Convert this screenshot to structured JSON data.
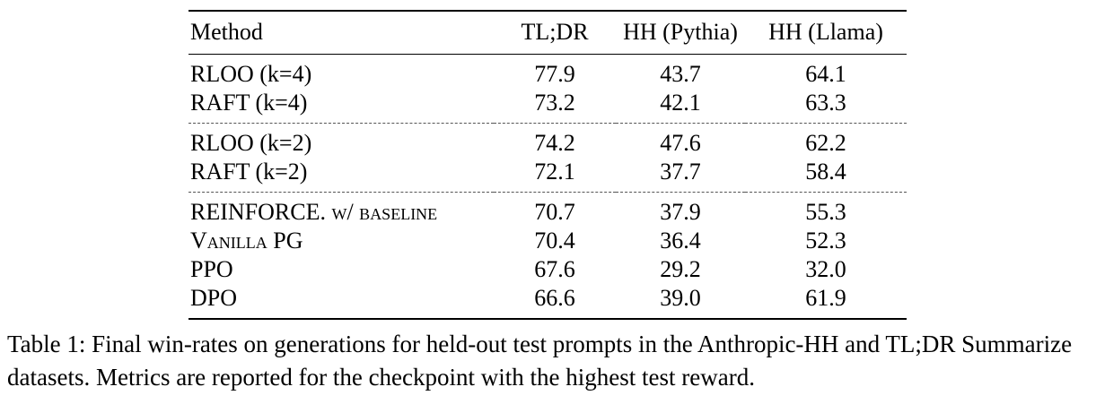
{
  "table": {
    "columns": [
      "Method",
      "TL;DR",
      "HH (Pythia)",
      "HH (Llama)"
    ],
    "groups": [
      {
        "rows": [
          {
            "method": [
              {
                "t": "RLOO (k=4)",
                "sc": false
              }
            ],
            "values": [
              {
                "v": "77.9",
                "b": true
              },
              {
                "v": "43.7",
                "b": true
              },
              {
                "v": "64.1",
                "b": true
              }
            ]
          },
          {
            "method": [
              {
                "t": "RAFT (k=4)",
                "sc": false
              }
            ],
            "values": [
              {
                "v": "73.2",
                "b": false
              },
              {
                "v": "42.1",
                "b": false
              },
              {
                "v": "63.3",
                "b": false
              }
            ]
          }
        ]
      },
      {
        "rows": [
          {
            "method": [
              {
                "t": "RLOO (k=2)",
                "sc": false
              }
            ],
            "values": [
              {
                "v": "74.2",
                "b": true
              },
              {
                "v": "47.6",
                "b": true
              },
              {
                "v": "62.2",
                "b": true
              }
            ]
          },
          {
            "method": [
              {
                "t": "RAFT (k=2)",
                "sc": false
              }
            ],
            "values": [
              {
                "v": "72.1",
                "b": false
              },
              {
                "v": "37.7",
                "b": false
              },
              {
                "v": "58.4",
                "b": false
              }
            ]
          }
        ]
      },
      {
        "rows": [
          {
            "method": [
              {
                "t": "REINFORCE. ",
                "sc": false
              },
              {
                "t": "w/ baseline",
                "sc": true
              }
            ],
            "values": [
              {
                "v": "70.7",
                "b": true
              },
              {
                "v": "37.9",
                "b": false
              },
              {
                "v": "55.3",
                "b": false
              }
            ]
          },
          {
            "method": [
              {
                "t": "Vanilla PG",
                "sc": true
              }
            ],
            "values": [
              {
                "v": "70.4",
                "b": false
              },
              {
                "v": "36.4",
                "b": false
              },
              {
                "v": "52.3",
                "b": false
              }
            ]
          },
          {
            "method": [
              {
                "t": "PPO",
                "sc": false
              }
            ],
            "values": [
              {
                "v": "67.6",
                "b": false
              },
              {
                "v": "29.2",
                "b": false
              },
              {
                "v": "32.0",
                "b": false
              }
            ]
          },
          {
            "method": [
              {
                "t": "DPO",
                "sc": false
              }
            ],
            "values": [
              {
                "v": "66.6",
                "b": false
              },
              {
                "v": "39.0",
                "b": true
              },
              {
                "v": "61.9",
                "b": true
              }
            ]
          }
        ]
      }
    ]
  },
  "caption": {
    "text": "Table 1: Final win-rates on generations for held-out test prompts in the Anthropic-HH and TL;DR Summarize datasets. Metrics are reported for the checkpoint with the highest test reward."
  }
}
